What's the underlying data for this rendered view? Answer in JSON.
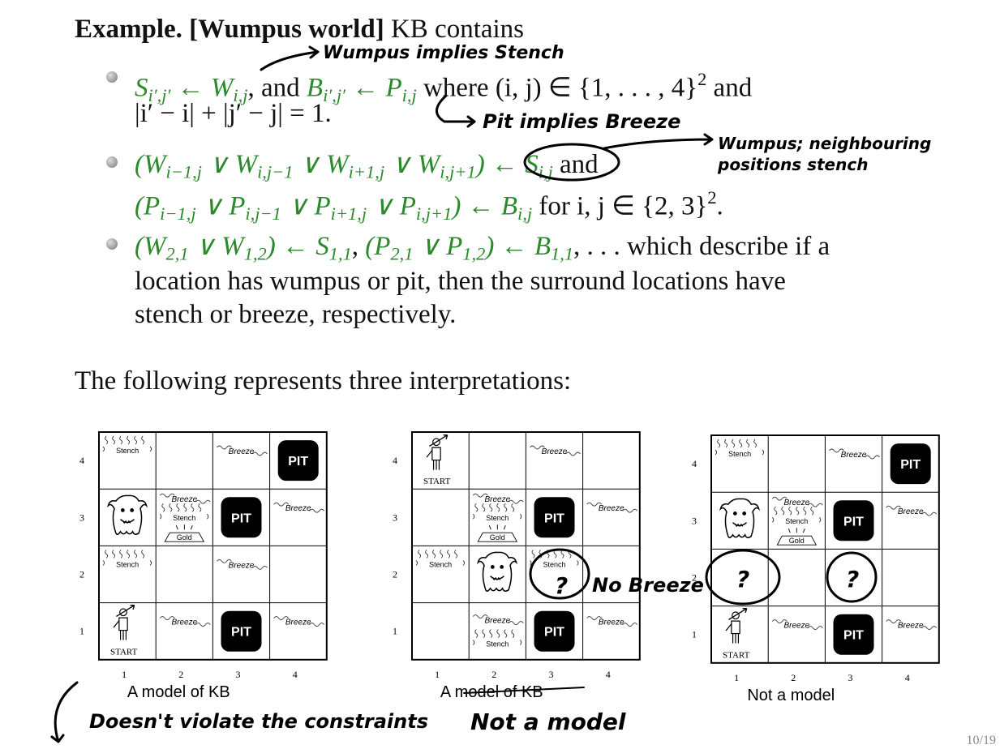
{
  "title": {
    "bold": "Example. [Wumpus world]",
    "rest": " KB contains"
  },
  "math_color": "#2b8a2b",
  "bullets": [
    {
      "lines": [
        [
          {
            "text": "S",
            "sub": "i′,j′",
            "math": true
          },
          {
            "text": " ← W",
            "sub": "i,j",
            "math": true
          },
          {
            "text": ", and "
          },
          {
            "text": "B",
            "sub": "i′,j′",
            "math": true
          },
          {
            "text": " ← P",
            "sub": "i,j",
            "math": true
          },
          {
            "text": " where (i, j) ∈ {1, . . . , 4}",
            "sup": "2"
          },
          {
            "text": " and"
          }
        ],
        [
          {
            "text": "|i′ − i| + |j′ − j| = 1."
          }
        ]
      ]
    },
    {
      "lines": [
        [
          {
            "text": "(W",
            "sub": "i−1,j",
            "math": true
          },
          {
            "text": " ∨ W",
            "sub": "i,j−1",
            "math": true
          },
          {
            "text": " ∨ W",
            "sub": "i+1,j",
            "math": true
          },
          {
            "text": " ∨ W",
            "sub": "i,j+1",
            "math": true
          },
          {
            "text": ") ← S",
            "sub": "i,j",
            "math": true
          },
          {
            "text": " and"
          }
        ],
        [
          {
            "text": "(P",
            "sub": "i−1,j",
            "math": true
          },
          {
            "text": " ∨ P",
            "sub": "i,j−1",
            "math": true
          },
          {
            "text": " ∨ P",
            "sub": "i+1,j",
            "math": true
          },
          {
            "text": " ∨ P",
            "sub": "i,j+1",
            "math": true
          },
          {
            "text": ") ← B",
            "sub": "i,j",
            "math": true
          },
          {
            "text": " for i, j ∈ {2, 3}",
            "sup": "2"
          },
          {
            "text": "."
          }
        ]
      ]
    },
    {
      "lines": [
        [
          {
            "text": "(W",
            "sub": "2,1",
            "math": true
          },
          {
            "text": " ∨ W",
            "sub": "1,2",
            "math": true
          },
          {
            "text": ") ← S",
            "sub": "1,1",
            "math": true
          },
          {
            "text": ", "
          },
          {
            "text": "(P",
            "sub": "2,1",
            "math": true
          },
          {
            "text": " ∨ P",
            "sub": "1,2",
            "math": true
          },
          {
            "text": ") ← B",
            "sub": "1,1",
            "math": true
          },
          {
            "text": ", . . . which describe if a"
          }
        ],
        [
          {
            "text": "location has wumpus or pit, then the surround locations have"
          }
        ],
        [
          {
            "text": "stench or breeze, respectively."
          }
        ]
      ]
    }
  ],
  "following": "The following represents three interpretations:",
  "grids": [
    {
      "caption": "A model of KB",
      "row_labels": [
        "4",
        "3",
        "2",
        "1"
      ],
      "col_labels": [
        "1",
        "2",
        "3",
        "4"
      ],
      "rows": [
        [
          {
            "stench": "Stench"
          },
          {},
          {
            "breeze": "Breeze"
          },
          {
            "pit": "PIT"
          }
        ],
        [
          {},
          {
            "breeze": "Breeze",
            "stench": "Stench",
            "gold": "Gold"
          },
          {
            "pit": "PIT"
          },
          {
            "breeze": "Breeze"
          }
        ],
        [
          {
            "stench": "Stench"
          },
          {},
          {
            "breeze": "Breeze"
          },
          {}
        ],
        [
          {
            "start": "START"
          },
          {
            "breeze": "Breeze"
          },
          {
            "pit": "PIT"
          },
          {
            "breeze": "Breeze"
          }
        ]
      ]
    },
    {
      "caption": "A model of KB",
      "row_labels": [
        "4",
        "3",
        "2",
        "1"
      ],
      "col_labels": [
        "1",
        "2",
        "3",
        "4"
      ],
      "rows": [
        [
          {
            "start": "START"
          },
          {},
          {
            "breeze": "Breeze"
          },
          {}
        ],
        [
          {},
          {
            "breeze": "Breeze",
            "stench": "Stench",
            "gold": "Gold"
          },
          {
            "pit": "PIT"
          },
          {
            "breeze": "Breeze"
          }
        ],
        [
          {
            "stench": "Stench"
          },
          {},
          {
            "stench": "Stench"
          },
          {}
        ],
        [
          {},
          {
            "breeze": "Breeze",
            "stench": "Stench"
          },
          {
            "pit": "PIT"
          },
          {
            "breeze": "Breeze"
          }
        ]
      ]
    },
    {
      "caption": "Not a model",
      "row_labels": [
        "4",
        "3",
        "2",
        "1"
      ],
      "col_labels": [
        "1",
        "2",
        "3",
        "4"
      ],
      "rows": [
        [
          {
            "stench": "Stench"
          },
          {},
          {
            "breeze": "Breeze"
          },
          {
            "pit": "PIT"
          }
        ],
        [
          {},
          {
            "breeze": "Breeze",
            "stench": "Stench",
            "gold": "Gold"
          },
          {
            "pit": "PIT"
          },
          {
            "breeze": "Breeze"
          }
        ],
        [
          {},
          {},
          {},
          {}
        ],
        [
          {
            "start": "START"
          },
          {
            "breeze": "Breeze"
          },
          {
            "pit": "PIT"
          },
          {
            "breeze": "Breeze"
          }
        ]
      ]
    }
  ],
  "annotations": {
    "wumpus_stench": "Wumpus implies Stench",
    "pit_breeze": "Pit implies Breeze",
    "neighbours": [
      "Wumpus; neighbouring",
      "positions stench"
    ],
    "no_breeze": "No Breeze",
    "question_marks": [
      "?",
      "?",
      "?"
    ],
    "doesnt_violate": "Doesn't violate the constraints",
    "not_a_model": "Not a model"
  },
  "page_number": "10/19"
}
